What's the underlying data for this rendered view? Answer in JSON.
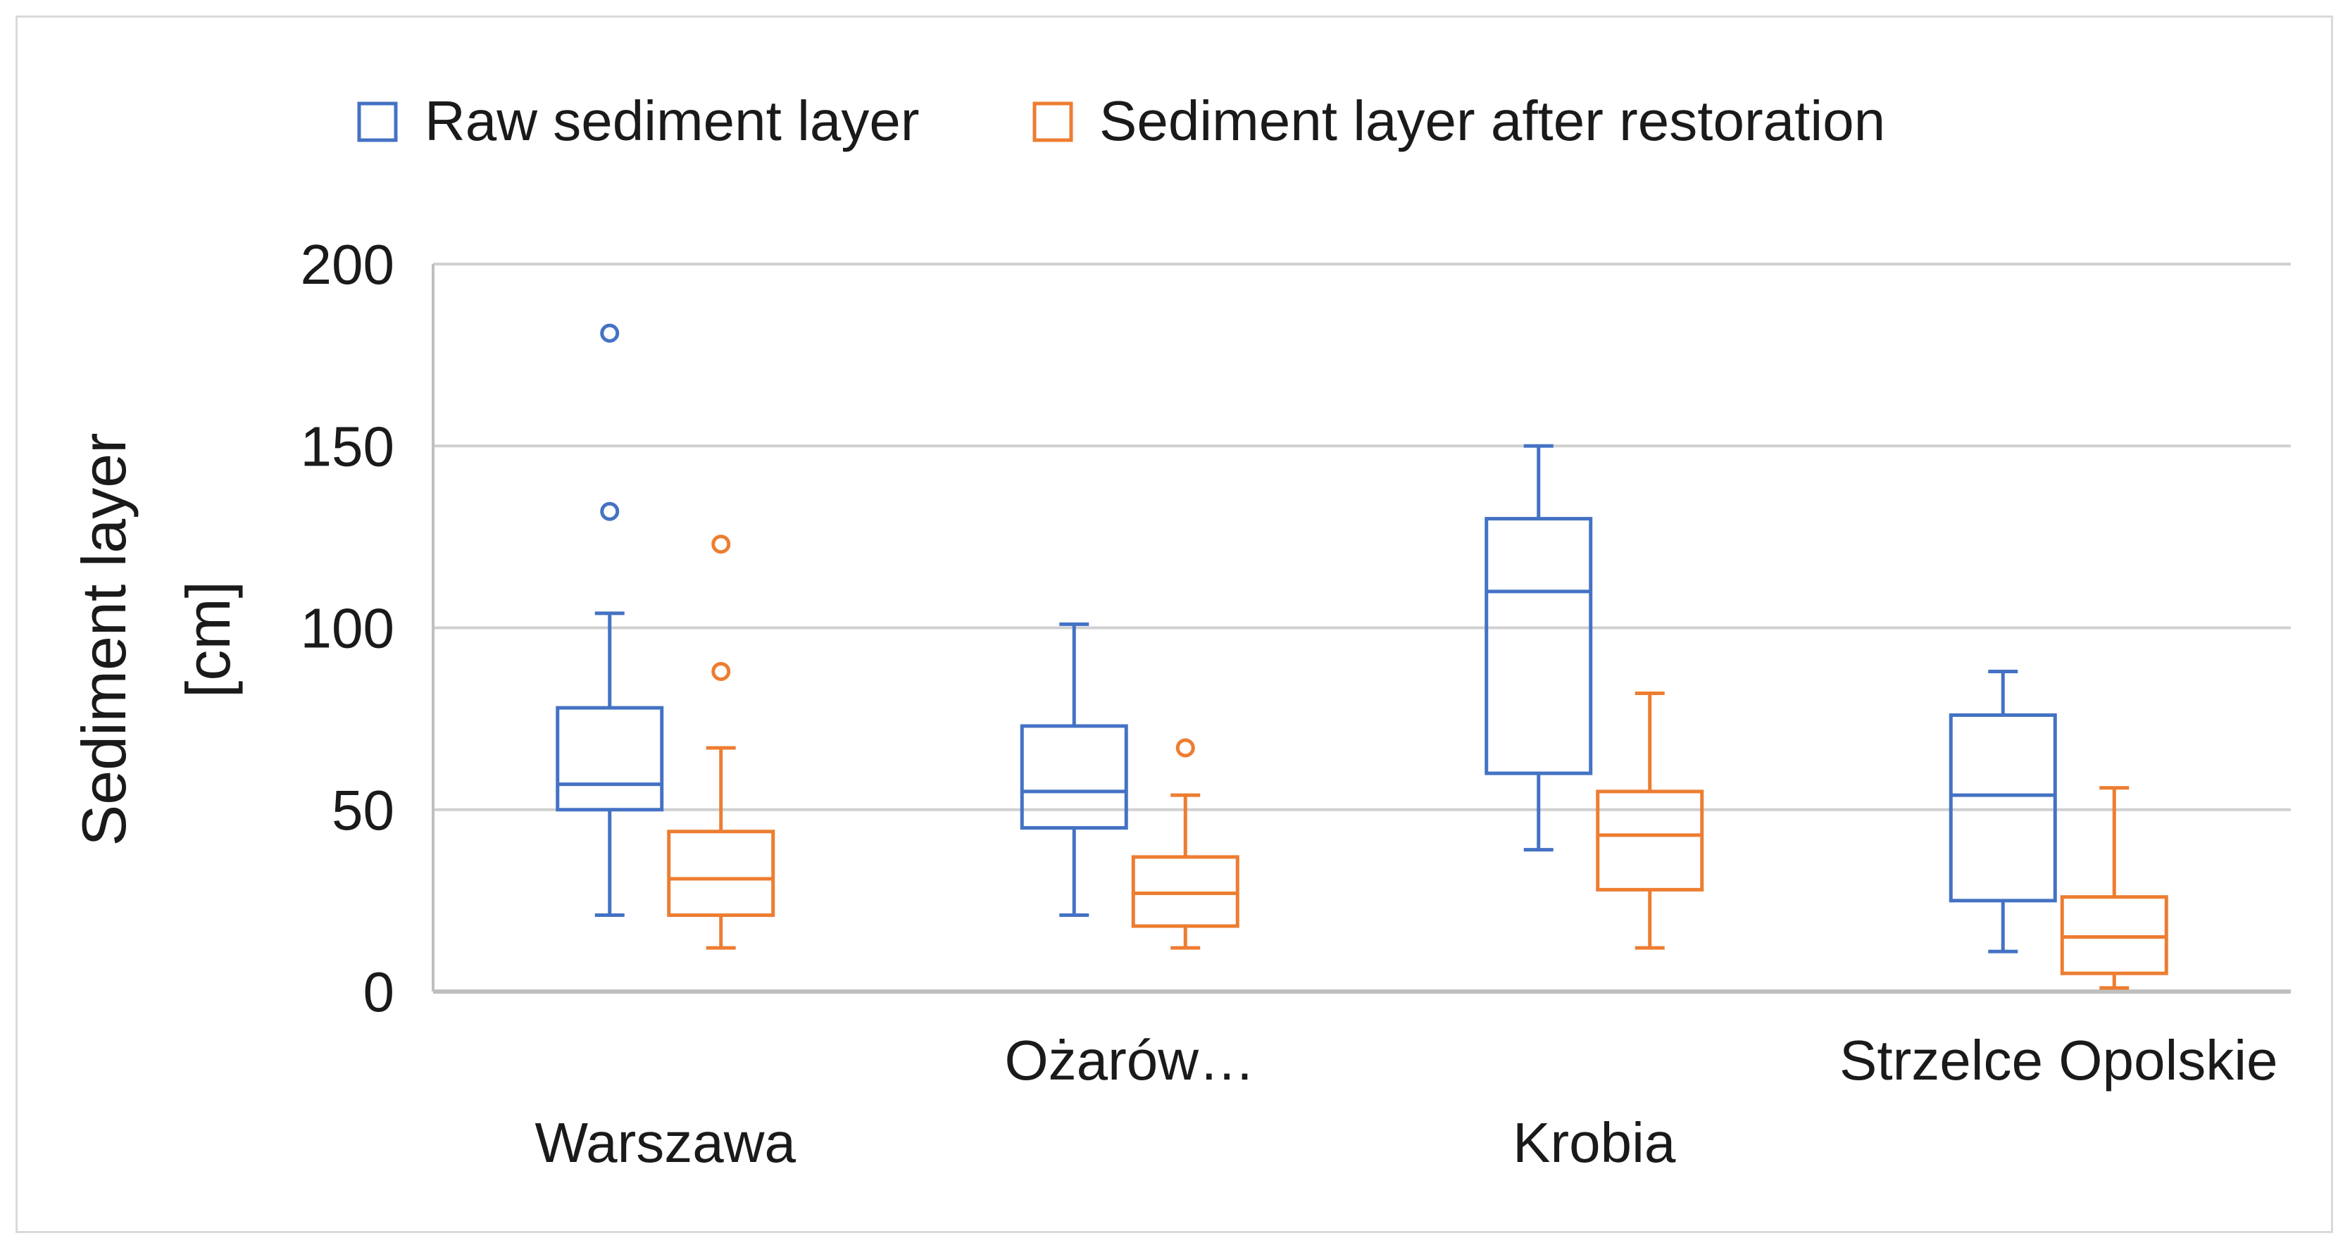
{
  "chart_data": {
    "type": "boxplot",
    "ylabel_lines": [
      "Sediment layer",
      "[cm]"
    ],
    "ylim": [
      0,
      200
    ],
    "yticks": [
      0,
      50,
      100,
      150,
      200
    ],
    "grid": true,
    "legend_position": "top",
    "categories": [
      "Warszawa",
      "Ożarów…",
      "Krobia",
      "Strzelce Opolskie"
    ],
    "series": [
      {
        "name": "Raw sediment layer",
        "color": "#4472c4",
        "boxes": [
          {
            "min": 21,
            "q1": 50,
            "median": 57,
            "q3": 78,
            "max": 104,
            "outliers": [
              132,
              181
            ]
          },
          {
            "min": 21,
            "q1": 45,
            "median": 55,
            "q3": 73,
            "max": 101,
            "outliers": []
          },
          {
            "min": 39,
            "q1": 60,
            "median": 110,
            "q3": 130,
            "max": 150,
            "outliers": []
          },
          {
            "min": 11,
            "q1": 25,
            "median": 54,
            "q3": 76,
            "max": 88,
            "outliers": []
          }
        ]
      },
      {
        "name": "Sediment layer after restoration",
        "color": "#ed7d31",
        "boxes": [
          {
            "min": 12,
            "q1": 21,
            "median": 31,
            "q3": 44,
            "max": 67,
            "outliers": [
              88,
              123
            ]
          },
          {
            "min": 12,
            "q1": 18,
            "median": 27,
            "q3": 37,
            "max": 54,
            "outliers": [
              67
            ]
          },
          {
            "min": 12,
            "q1": 28,
            "median": 43,
            "q3": 55,
            "max": 82,
            "outliers": []
          },
          {
            "min": 1,
            "q1": 5,
            "median": 15,
            "q3": 26,
            "max": 56,
            "outliers": []
          }
        ]
      }
    ]
  }
}
